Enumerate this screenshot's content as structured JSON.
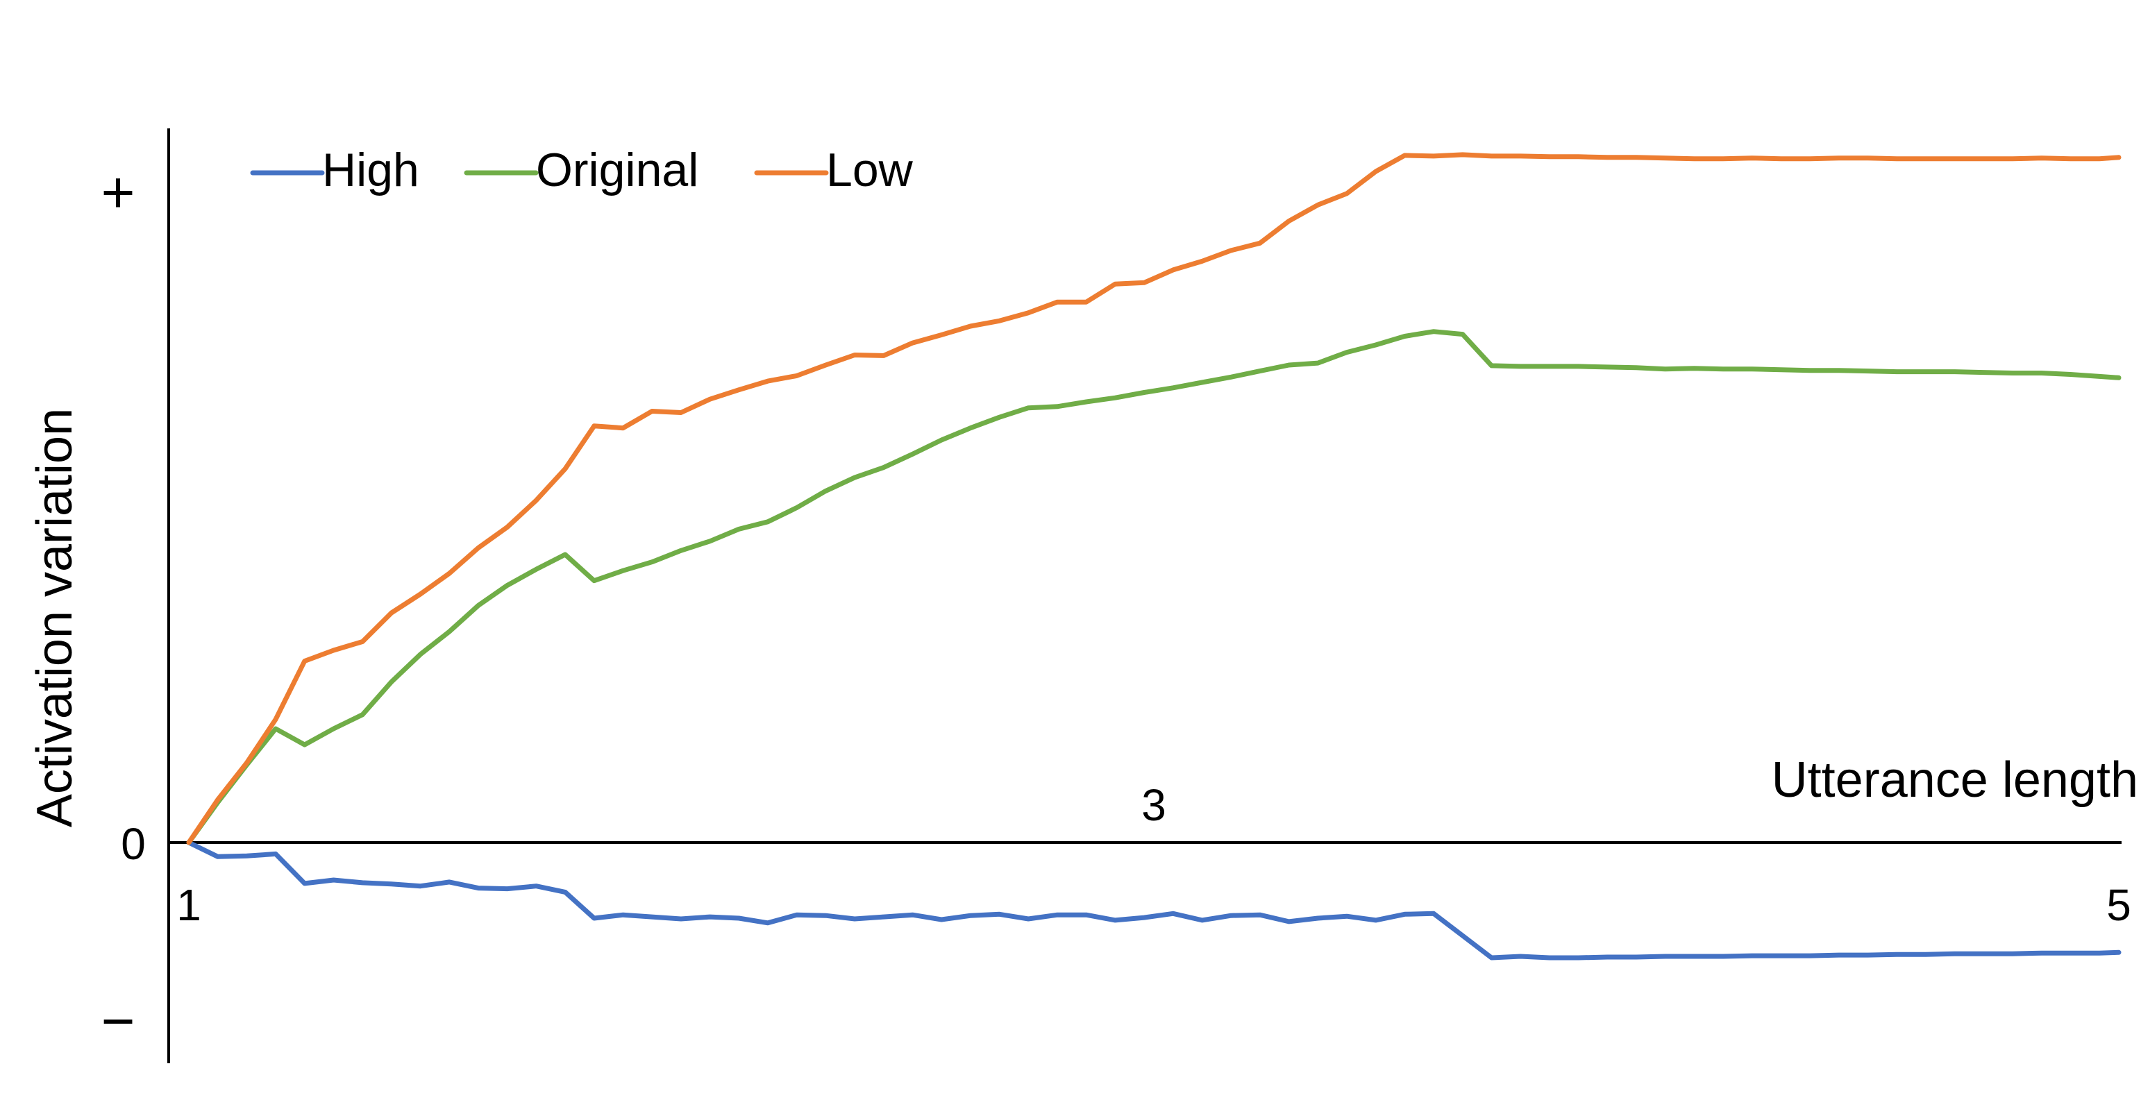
{
  "chart_data": {
    "type": "line",
    "title": "",
    "xlabel": "Utterance length",
    "ylabel": "Activation variation",
    "x_tick_labels": [
      "1",
      "3",
      "5"
    ],
    "x_ticks": [
      1,
      3,
      5
    ],
    "y_tick_labels": [
      "+",
      "0",
      "−"
    ],
    "y_ticks": [
      1,
      0,
      -0.28
    ],
    "xlim": [
      1,
      5
    ],
    "ylim": [
      -0.28,
      1
    ],
    "grid": false,
    "legend_position": "top-left",
    "x": [
      1.0,
      1.06,
      1.12,
      1.18,
      1.24,
      1.3,
      1.36,
      1.42,
      1.48,
      1.54,
      1.6,
      1.66,
      1.72,
      1.78,
      1.84,
      1.9,
      1.96,
      2.02,
      2.08,
      2.14,
      2.2,
      2.26,
      2.32,
      2.38,
      2.44,
      2.5,
      2.56,
      2.62,
      2.68,
      2.74,
      2.8,
      2.86,
      2.92,
      2.98,
      3.04,
      3.1,
      3.16,
      3.22,
      3.28,
      3.34,
      3.4,
      3.46,
      3.52,
      3.58,
      3.64,
      3.7,
      3.76,
      3.82,
      3.88,
      3.94,
      4.0,
      4.06,
      4.12,
      4.18,
      4.24,
      4.3,
      4.36,
      4.42,
      4.48,
      4.54,
      4.6,
      4.66,
      4.72,
      4.78,
      4.84,
      4.9,
      4.96,
      5.0
    ],
    "series": [
      {
        "name": "High",
        "color": "#4472C4",
        "values": [
          0.0,
          -0.021,
          -0.02,
          -0.017,
          -0.061,
          -0.056,
          -0.06,
          -0.062,
          -0.065,
          -0.059,
          -0.068,
          -0.069,
          -0.065,
          -0.074,
          -0.113,
          -0.108,
          -0.111,
          -0.114,
          -0.111,
          -0.113,
          -0.12,
          -0.108,
          -0.109,
          -0.114,
          -0.111,
          -0.108,
          -0.115,
          -0.109,
          -0.107,
          -0.114,
          -0.108,
          -0.108,
          -0.116,
          -0.112,
          -0.106,
          -0.116,
          -0.109,
          -0.108,
          -0.118,
          -0.113,
          -0.11,
          -0.116,
          -0.107,
          -0.106,
          -0.139,
          -0.172,
          -0.17,
          -0.172,
          -0.172,
          -0.171,
          -0.171,
          -0.17,
          -0.17,
          -0.17,
          -0.169,
          -0.169,
          -0.169,
          -0.168,
          -0.168,
          -0.167,
          -0.167,
          -0.166,
          -0.166,
          -0.166,
          -0.165,
          -0.165,
          -0.165,
          -0.164
        ]
      },
      {
        "name": "Original",
        "color": "#70AD47",
        "values": [
          0.0,
          0.06,
          0.116,
          0.17,
          0.146,
          0.17,
          0.191,
          0.24,
          0.281,
          0.315,
          0.354,
          0.384,
          0.408,
          0.43,
          0.391,
          0.406,
          0.419,
          0.436,
          0.45,
          0.468,
          0.479,
          0.5,
          0.525,
          0.545,
          0.56,
          0.58,
          0.601,
          0.619,
          0.635,
          0.649,
          0.651,
          0.658,
          0.664,
          0.672,
          0.679,
          0.687,
          0.695,
          0.704,
          0.713,
          0.716,
          0.732,
          0.743,
          0.756,
          0.763,
          0.759,
          0.712,
          0.711,
          0.711,
          0.711,
          0.71,
          0.709,
          0.707,
          0.708,
          0.707,
          0.707,
          0.706,
          0.705,
          0.705,
          0.704,
          0.703,
          0.703,
          0.703,
          0.702,
          0.701,
          0.701,
          0.699,
          0.696,
          0.694
        ]
      },
      {
        "name": "Low",
        "color": "#ED7D31",
        "values": [
          0.0,
          0.064,
          0.119,
          0.184,
          0.271,
          0.287,
          0.3,
          0.343,
          0.371,
          0.402,
          0.44,
          0.471,
          0.511,
          0.558,
          0.622,
          0.619,
          0.644,
          0.642,
          0.662,
          0.676,
          0.689,
          0.697,
          0.713,
          0.728,
          0.727,
          0.746,
          0.758,
          0.771,
          0.779,
          0.791,
          0.807,
          0.807,
          0.834,
          0.836,
          0.855,
          0.868,
          0.884,
          0.895,
          0.928,
          0.952,
          0.969,
          1.002,
          1.026,
          1.025,
          1.027,
          1.025,
          1.025,
          1.024,
          1.024,
          1.023,
          1.023,
          1.022,
          1.021,
          1.021,
          1.022,
          1.021,
          1.021,
          1.022,
          1.022,
          1.021,
          1.021,
          1.021,
          1.021,
          1.021,
          1.022,
          1.021,
          1.021,
          1.023
        ]
      }
    ]
  }
}
